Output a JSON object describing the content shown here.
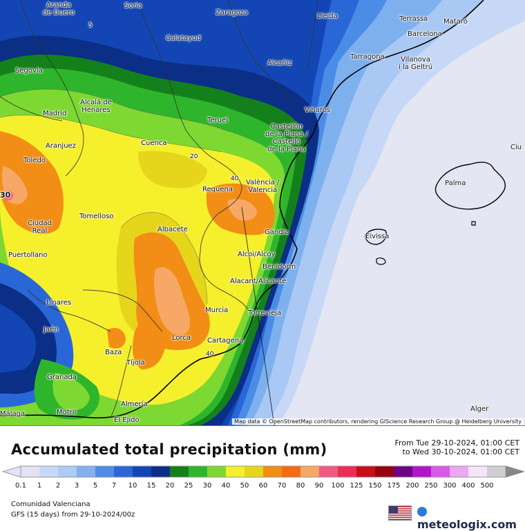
{
  "map": {
    "attribution": "Map data © OpenStreetMap contributors, rendering GIScience Research Group @ Heidelberg University",
    "cities": [
      {
        "id": "aranda",
        "label": "Aranda\nde Duero"
      },
      {
        "id": "soria",
        "label": "Soria"
      },
      {
        "id": "zaragoza",
        "label": "Zaragoza"
      },
      {
        "id": "lleida",
        "label": "Lleida"
      },
      {
        "id": "terrassa",
        "label": "Terrassa"
      },
      {
        "id": "mataro",
        "label": "Mataró"
      },
      {
        "id": "barcelona",
        "label": "Barcelona"
      },
      {
        "id": "calatayud",
        "label": "Calatayud"
      },
      {
        "id": "tarragona",
        "label": "Tarragona"
      },
      {
        "id": "vilanova",
        "label": "Vilanova\ni la Geltrú"
      },
      {
        "id": "segovia",
        "label": "Segovia"
      },
      {
        "id": "alcaniz",
        "label": "Alcañiz"
      },
      {
        "id": "alcala",
        "label": "Alcalá de\nHenares"
      },
      {
        "id": "madrid",
        "label": "Madrid"
      },
      {
        "id": "vinaros",
        "label": "Vinaròs"
      },
      {
        "id": "teruel",
        "label": "Teruel"
      },
      {
        "id": "castellon",
        "label": "Castellón\nde la Plana /\nCastelló\nde la Plana"
      },
      {
        "id": "aranjuez",
        "label": "Aranjuez"
      },
      {
        "id": "cuenca",
        "label": "Cuenca"
      },
      {
        "id": "toledo",
        "label": "Toledo"
      },
      {
        "id": "valencia",
        "label": "València /\nValencia"
      },
      {
        "id": "requena",
        "label": "Requena"
      },
      {
        "id": "palma",
        "label": "Palma"
      },
      {
        "id": "ciudadreal",
        "label": "Ciudad\nReal"
      },
      {
        "id": "tomelloso",
        "label": "Tomelloso"
      },
      {
        "id": "albacete",
        "label": "Albacete"
      },
      {
        "id": "gandia",
        "label": "Gandia"
      },
      {
        "id": "eivissa",
        "label": "Eivissa"
      },
      {
        "id": "puertollano",
        "label": "Puertollano"
      },
      {
        "id": "alcoy",
        "label": "Alcoi/Alcoy"
      },
      {
        "id": "benidorm",
        "label": "Benidorm"
      },
      {
        "id": "alicante",
        "label": "Alacant/Alicante"
      },
      {
        "id": "linares",
        "label": "Linares"
      },
      {
        "id": "murcia",
        "label": "Murcia"
      },
      {
        "id": "torrevieja",
        "label": "Torrevieja"
      },
      {
        "id": "jaen",
        "label": "Jaén"
      },
      {
        "id": "lorca",
        "label": "Lorca"
      },
      {
        "id": "cartagena",
        "label": "Cartagena"
      },
      {
        "id": "baza",
        "label": "Baza"
      },
      {
        "id": "tijola",
        "label": "Tíjola"
      },
      {
        "id": "granada",
        "label": "Granada"
      },
      {
        "id": "almeria",
        "label": "Almería"
      },
      {
        "id": "malaga",
        "label": "Málaga"
      },
      {
        "id": "motril",
        "label": "Motril"
      },
      {
        "id": "elejido",
        "label": "El Ejido"
      },
      {
        "id": "alger",
        "label": "Alger"
      },
      {
        "id": "ciu",
        "label": "Ciu"
      }
    ],
    "contour_labels": [
      {
        "id": "c5",
        "label": "5"
      },
      {
        "id": "c20",
        "label": "20"
      },
      {
        "id": "c40a",
        "label": "40"
      },
      {
        "id": "c40b",
        "label": "40"
      },
      {
        "id": "c30",
        "label": "30"
      }
    ]
  },
  "legend": {
    "title": "Accumulated total precipitation (mm)",
    "valid_from": "From Tue 29-10-2024, 01:00 CET",
    "valid_to": "to Wed 30-10-2024, 01:00 CET",
    "unit": "mm",
    "scale": [
      {
        "value": "0.1",
        "color": "#e2e3f5"
      },
      {
        "value": "1",
        "color": "#c8d9f7"
      },
      {
        "value": "2",
        "color": "#aecbf6"
      },
      {
        "value": "3",
        "color": "#84b0f0"
      },
      {
        "value": "5",
        "color": "#4f8de6"
      },
      {
        "value": "7",
        "color": "#2a66d6"
      },
      {
        "value": "10",
        "color": "#1346b4"
      },
      {
        "value": "15",
        "color": "#0b2e86"
      },
      {
        "value": "20",
        "color": "#14801c"
      },
      {
        "value": "25",
        "color": "#2fb52c"
      },
      {
        "value": "30",
        "color": "#7ed832"
      },
      {
        "value": "40",
        "color": "#f6f02c"
      },
      {
        "value": "50",
        "color": "#e5d61c"
      },
      {
        "value": "60",
        "color": "#f28d16"
      },
      {
        "value": "70",
        "color": "#f56b12"
      },
      {
        "value": "80",
        "color": "#f8a866"
      },
      {
        "value": "90",
        "color": "#f35a82"
      },
      {
        "value": "100",
        "color": "#ee2a58"
      },
      {
        "value": "125",
        "color": "#c80e16"
      },
      {
        "value": "150",
        "color": "#960410"
      },
      {
        "value": "175",
        "color": "#6c0484"
      },
      {
        "value": "200",
        "color": "#b316c8"
      },
      {
        "value": "250",
        "color": "#d85ae8"
      },
      {
        "value": "300",
        "color": "#eca6f2"
      },
      {
        "value": "400",
        "color": "#f6e4fb"
      },
      {
        "value": "500",
        "color": "#cfcfcf"
      }
    ],
    "region": "Comunidad Valenciana",
    "model": "GFS (15 days) from  29-10-2024/00z",
    "brand": "meteologix.com"
  }
}
